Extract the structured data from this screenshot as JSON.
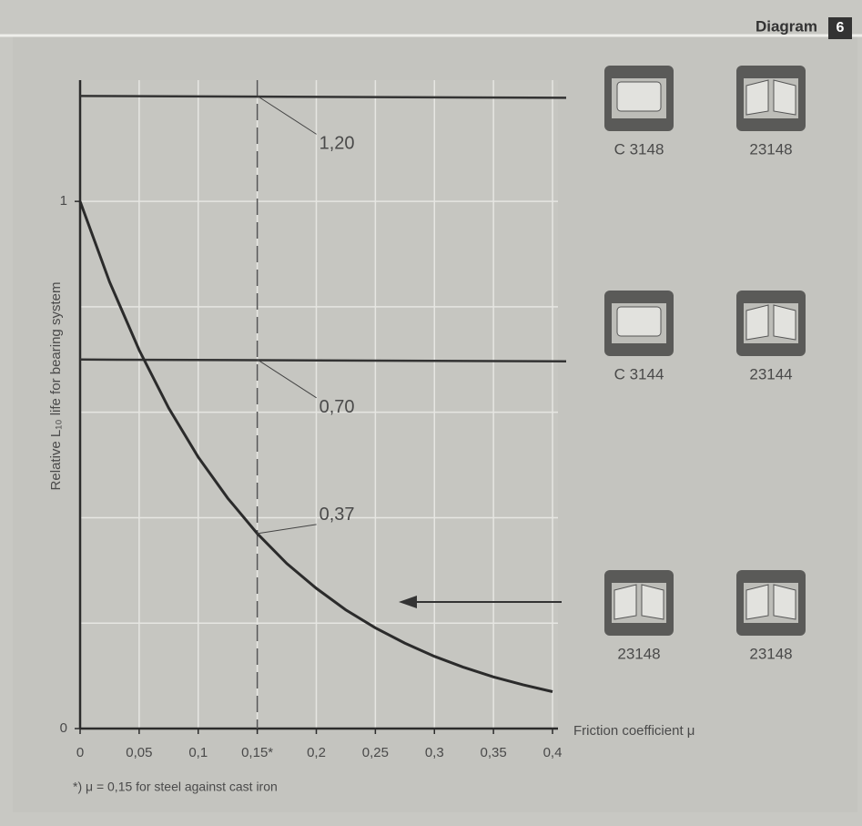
{
  "header": {
    "title": "Diagram",
    "number": "6"
  },
  "chart_data": {
    "type": "line",
    "y_label": "Relative L₁₀ life for bearing system",
    "x_label": "Friction coefficient μ",
    "footnote": "*) μ = 0,15 for steel against cast iron",
    "x": [
      0,
      0.025,
      0.05,
      0.075,
      0.1,
      0.125,
      0.15,
      0.175,
      0.2,
      0.225,
      0.25,
      0.275,
      0.3,
      0.325,
      0.35,
      0.375,
      0.4
    ],
    "series": [
      {
        "color": "#2b2b2b",
        "values": [
          1,
          0.847,
          0.718,
          0.608,
          0.515,
          0.437,
          0.37,
          0.313,
          0.266,
          0.225,
          0.191,
          0.162,
          0.137,
          0.116,
          0.098,
          0.083,
          0.07
        ]
      }
    ],
    "xlim": [
      0,
      0.4
    ],
    "ylim": [
      0,
      1.23
    ],
    "xticks": [
      0,
      {
        "value": 0.05,
        "label": "0,05"
      },
      {
        "value": 0.1,
        "label": "0,1"
      },
      {
        "value": 0.15,
        "label": "0,15*"
      },
      {
        "value": 0.2,
        "label": "0,2"
      },
      {
        "value": 0.25,
        "label": "0,25"
      },
      {
        "value": 0.3,
        "label": "0,3"
      },
      {
        "value": 0.35,
        "label": "0,35"
      },
      {
        "value": 0.4,
        "label": "0,4"
      }
    ],
    "yticks": [
      0,
      1
    ],
    "ygrid": [
      0.2,
      0.4,
      0.6,
      0.8,
      1
    ],
    "grid": true,
    "vline": 0.15,
    "reference_lines": [
      {
        "value": 1.2,
        "label": "1,20"
      },
      {
        "value": 0.7,
        "label": "0,70"
      }
    ],
    "point_labels": [
      {
        "x": 0.15,
        "value": 0.37,
        "label": "0,37"
      }
    ],
    "bearing_rows": [
      [
        "C 3148",
        "23148"
      ],
      [
        "C 3144",
        "23144"
      ],
      [
        "23148",
        "23148"
      ]
    ]
  }
}
